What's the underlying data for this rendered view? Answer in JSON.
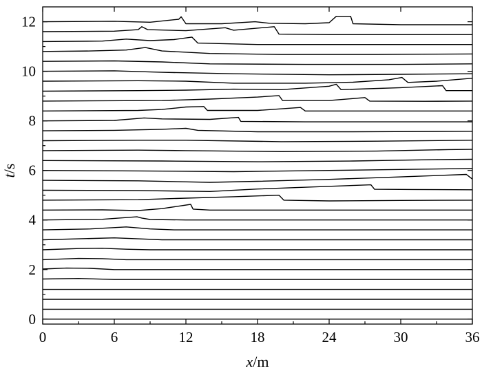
{
  "chart_data": {
    "type": "line",
    "title": "",
    "xlabel": {
      "variable": "x",
      "unit": "/m"
    },
    "ylabel": {
      "variable": "t",
      "unit": "/s"
    },
    "xlim": [
      0,
      36
    ],
    "ylim": [
      -0.2,
      12.6
    ],
    "x_ticks": [
      0,
      6,
      12,
      18,
      24,
      30,
      36
    ],
    "y_ticks": [
      0,
      2,
      4,
      6,
      8,
      10,
      12
    ],
    "grid": false,
    "legend": "none",
    "trace_spacing_s": 0.4,
    "trace_count": 31,
    "line_color": "#000000",
    "traces": [
      {
        "t": 0.0,
        "pts": [
          [
            0,
            0
          ],
          [
            36,
            0
          ]
        ]
      },
      {
        "t": 0.4,
        "pts": [
          [
            0,
            0.4
          ],
          [
            36,
            0.4
          ]
        ]
      },
      {
        "t": 0.8,
        "pts": [
          [
            0,
            0.8
          ],
          [
            36,
            0.8
          ]
        ]
      },
      {
        "t": 1.2,
        "pts": [
          [
            0,
            1.2
          ],
          [
            36,
            1.2
          ]
        ]
      },
      {
        "t": 1.6,
        "pts": [
          [
            0,
            1.62
          ],
          [
            3,
            1.64
          ],
          [
            6,
            1.6
          ],
          [
            36,
            1.6
          ]
        ]
      },
      {
        "t": 2.0,
        "pts": [
          [
            0,
            2.02
          ],
          [
            2,
            2.06
          ],
          [
            4,
            2.05
          ],
          [
            6,
            2.0
          ],
          [
            36,
            2.0
          ]
        ]
      },
      {
        "t": 2.4,
        "pts": [
          [
            0,
            2.4
          ],
          [
            3,
            2.45
          ],
          [
            5,
            2.44
          ],
          [
            7,
            2.4
          ],
          [
            36,
            2.4
          ]
        ]
      },
      {
        "t": 2.8,
        "pts": [
          [
            0,
            2.8
          ],
          [
            3,
            2.85
          ],
          [
            5,
            2.86
          ],
          [
            7,
            2.82
          ],
          [
            9,
            2.8
          ],
          [
            36,
            2.8
          ]
        ]
      },
      {
        "t": 3.2,
        "pts": [
          [
            0,
            3.2
          ],
          [
            3,
            3.24
          ],
          [
            6,
            3.28
          ],
          [
            8,
            3.24
          ],
          [
            10,
            3.2
          ],
          [
            36,
            3.2
          ]
        ]
      },
      {
        "t": 3.6,
        "pts": [
          [
            0,
            3.6
          ],
          [
            4,
            3.64
          ],
          [
            7,
            3.72
          ],
          [
            9,
            3.64
          ],
          [
            11,
            3.6
          ],
          [
            36,
            3.6
          ]
        ]
      },
      {
        "t": 4.0,
        "pts": [
          [
            0,
            4.0
          ],
          [
            5,
            4.03
          ],
          [
            7.9,
            4.13
          ],
          [
            8.3,
            4.08
          ],
          [
            9,
            4.02
          ],
          [
            12,
            4.0
          ],
          [
            36,
            4.0
          ]
        ]
      },
      {
        "t": 4.4,
        "pts": [
          [
            0,
            4.4
          ],
          [
            5,
            4.41
          ],
          [
            8,
            4.38
          ],
          [
            10,
            4.46
          ],
          [
            12.4,
            4.63
          ],
          [
            12.6,
            4.44
          ],
          [
            14,
            4.4
          ],
          [
            36,
            4.4
          ]
        ]
      },
      {
        "t": 4.8,
        "pts": [
          [
            0,
            4.8
          ],
          [
            8,
            4.82
          ],
          [
            12,
            4.88
          ],
          [
            16,
            4.94
          ],
          [
            19.8,
            5.0
          ],
          [
            20.2,
            4.8
          ],
          [
            24,
            4.77
          ],
          [
            30,
            4.79
          ],
          [
            36,
            4.8
          ]
        ]
      },
      {
        "t": 5.2,
        "pts": [
          [
            0,
            5.2
          ],
          [
            8,
            5.19
          ],
          [
            14,
            5.15
          ],
          [
            18,
            5.25
          ],
          [
            24,
            5.36
          ],
          [
            27.5,
            5.42
          ],
          [
            27.8,
            5.24
          ],
          [
            31,
            5.23
          ],
          [
            36,
            5.22
          ]
        ]
      },
      {
        "t": 5.6,
        "pts": [
          [
            0,
            5.6
          ],
          [
            8,
            5.58
          ],
          [
            14,
            5.52
          ],
          [
            18,
            5.56
          ],
          [
            24,
            5.64
          ],
          [
            30,
            5.74
          ],
          [
            35.5,
            5.84
          ],
          [
            36,
            5.65
          ]
        ]
      },
      {
        "t": 6.0,
        "pts": [
          [
            0,
            6.0
          ],
          [
            8,
            5.98
          ],
          [
            16,
            5.95
          ],
          [
            24,
            6.0
          ],
          [
            30,
            6.04
          ],
          [
            36,
            6.08
          ]
        ]
      },
      {
        "t": 6.4,
        "pts": [
          [
            0,
            6.4
          ],
          [
            10,
            6.38
          ],
          [
            18,
            6.35
          ],
          [
            26,
            6.38
          ],
          [
            33,
            6.44
          ],
          [
            36,
            6.45
          ]
        ]
      },
      {
        "t": 6.8,
        "pts": [
          [
            0,
            6.8
          ],
          [
            8,
            6.82
          ],
          [
            12,
            6.8
          ],
          [
            20,
            6.76
          ],
          [
            28,
            6.78
          ],
          [
            34,
            6.84
          ],
          [
            36,
            6.85
          ]
        ]
      },
      {
        "t": 7.2,
        "pts": [
          [
            0,
            7.2
          ],
          [
            8,
            7.22
          ],
          [
            12,
            7.22
          ],
          [
            20,
            7.16
          ],
          [
            28,
            7.18
          ],
          [
            36,
            7.22
          ]
        ]
      },
      {
        "t": 7.6,
        "pts": [
          [
            0,
            7.6
          ],
          [
            6,
            7.62
          ],
          [
            10,
            7.66
          ],
          [
            12,
            7.7
          ],
          [
            13,
            7.62
          ],
          [
            18,
            7.56
          ],
          [
            26,
            7.56
          ],
          [
            36,
            7.58
          ]
        ]
      },
      {
        "t": 8.0,
        "pts": [
          [
            0,
            8.0
          ],
          [
            6,
            8.02
          ],
          [
            8.5,
            8.12
          ],
          [
            10,
            8.08
          ],
          [
            14,
            8.06
          ],
          [
            16.4,
            8.14
          ],
          [
            16.6,
            7.98
          ],
          [
            22,
            7.96
          ],
          [
            36,
            7.96
          ]
        ]
      },
      {
        "t": 8.4,
        "pts": [
          [
            0,
            8.4
          ],
          [
            8,
            8.42
          ],
          [
            10,
            8.46
          ],
          [
            12,
            8.56
          ],
          [
            13.5,
            8.58
          ],
          [
            13.8,
            8.42
          ],
          [
            18,
            8.42
          ],
          [
            21.6,
            8.54
          ],
          [
            22,
            8.4
          ],
          [
            30,
            8.4
          ],
          [
            36,
            8.4
          ]
        ]
      },
      {
        "t": 8.8,
        "pts": [
          [
            0,
            8.8
          ],
          [
            10,
            8.82
          ],
          [
            14,
            8.88
          ],
          [
            18,
            8.96
          ],
          [
            19.8,
            9.02
          ],
          [
            20.1,
            8.82
          ],
          [
            24,
            8.82
          ],
          [
            27,
            8.94
          ],
          [
            27.4,
            8.8
          ],
          [
            32,
            8.79
          ],
          [
            36,
            8.8
          ]
        ]
      },
      {
        "t": 9.2,
        "pts": [
          [
            0,
            9.2
          ],
          [
            8,
            9.22
          ],
          [
            12,
            9.24
          ],
          [
            16,
            9.28
          ],
          [
            20,
            9.26
          ],
          [
            24,
            9.4
          ],
          [
            24.6,
            9.48
          ],
          [
            25,
            9.26
          ],
          [
            30,
            9.34
          ],
          [
            33.5,
            9.42
          ],
          [
            33.8,
            9.22
          ],
          [
            36,
            9.22
          ]
        ]
      },
      {
        "t": 9.6,
        "pts": [
          [
            0,
            9.6
          ],
          [
            8,
            9.62
          ],
          [
            12,
            9.6
          ],
          [
            16,
            9.52
          ],
          [
            22,
            9.52
          ],
          [
            26,
            9.56
          ],
          [
            29,
            9.66
          ],
          [
            30.1,
            9.75
          ],
          [
            30.6,
            9.55
          ],
          [
            33,
            9.6
          ],
          [
            36,
            9.72
          ]
        ]
      },
      {
        "t": 10.0,
        "pts": [
          [
            0,
            10.0
          ],
          [
            6,
            10.02
          ],
          [
            10,
            9.96
          ],
          [
            16,
            9.9
          ],
          [
            24,
            9.86
          ],
          [
            30,
            9.88
          ],
          [
            36,
            9.9
          ]
        ]
      },
      {
        "t": 10.4,
        "pts": [
          [
            0,
            10.4
          ],
          [
            6,
            10.42
          ],
          [
            10,
            10.38
          ],
          [
            14,
            10.3
          ],
          [
            22,
            10.28
          ],
          [
            30,
            10.28
          ],
          [
            36,
            10.3
          ]
        ]
      },
      {
        "t": 10.8,
        "pts": [
          [
            0,
            10.8
          ],
          [
            4,
            10.82
          ],
          [
            7,
            10.86
          ],
          [
            8.6,
            10.96
          ],
          [
            10,
            10.82
          ],
          [
            14,
            10.72
          ],
          [
            20,
            10.68
          ],
          [
            28,
            10.68
          ],
          [
            36,
            10.7
          ]
        ]
      },
      {
        "t": 11.2,
        "pts": [
          [
            0,
            11.2
          ],
          [
            5,
            11.22
          ],
          [
            7,
            11.3
          ],
          [
            9,
            11.24
          ],
          [
            11,
            11.28
          ],
          [
            12.5,
            11.38
          ],
          [
            13,
            11.14
          ],
          [
            18,
            11.08
          ],
          [
            26,
            11.08
          ],
          [
            36,
            11.08
          ]
        ]
      },
      {
        "t": 11.6,
        "pts": [
          [
            0,
            11.6
          ],
          [
            6,
            11.62
          ],
          [
            8,
            11.68
          ],
          [
            8.3,
            11.8
          ],
          [
            8.8,
            11.68
          ],
          [
            12,
            11.64
          ],
          [
            15.3,
            11.76
          ],
          [
            16,
            11.66
          ],
          [
            19.4,
            11.8
          ],
          [
            19.8,
            11.5
          ],
          [
            24,
            11.48
          ],
          [
            30,
            11.48
          ],
          [
            36,
            11.48
          ]
        ]
      },
      {
        "t": 12.0,
        "pts": [
          [
            0,
            12.0
          ],
          [
            6,
            12.02
          ],
          [
            9,
            11.98
          ],
          [
            11.4,
            12.1
          ],
          [
            11.6,
            12.2
          ],
          [
            12,
            11.92
          ],
          [
            15,
            11.92
          ],
          [
            17.8,
            12.0
          ],
          [
            19,
            11.94
          ],
          [
            22,
            11.92
          ],
          [
            24,
            11.96
          ],
          [
            24.6,
            12.22
          ],
          [
            25.8,
            12.22
          ],
          [
            26,
            11.92
          ],
          [
            30,
            11.88
          ],
          [
            36,
            11.88
          ]
        ]
      }
    ]
  }
}
